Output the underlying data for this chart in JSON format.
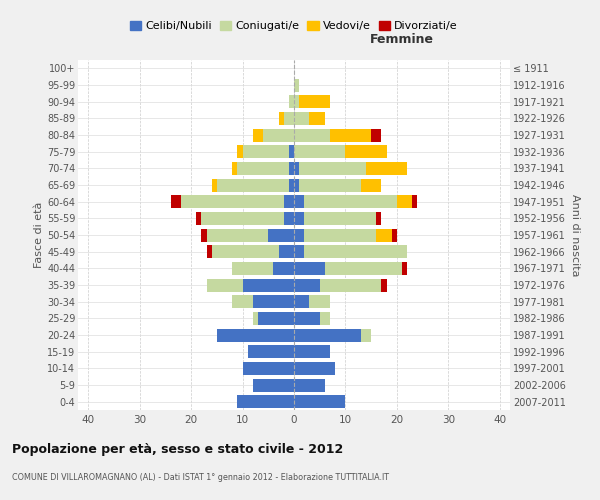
{
  "age_groups": [
    "0-4",
    "5-9",
    "10-14",
    "15-19",
    "20-24",
    "25-29",
    "30-34",
    "35-39",
    "40-44",
    "45-49",
    "50-54",
    "55-59",
    "60-64",
    "65-69",
    "70-74",
    "75-79",
    "80-84",
    "85-89",
    "90-94",
    "95-99",
    "100+"
  ],
  "birth_years": [
    "2007-2011",
    "2002-2006",
    "1997-2001",
    "1992-1996",
    "1987-1991",
    "1982-1986",
    "1977-1981",
    "1972-1976",
    "1967-1971",
    "1962-1966",
    "1957-1961",
    "1952-1956",
    "1947-1951",
    "1942-1946",
    "1937-1941",
    "1932-1936",
    "1927-1931",
    "1922-1926",
    "1917-1921",
    "1912-1916",
    "≤ 1911"
  ],
  "male": {
    "celibi": [
      11,
      8,
      10,
      9,
      15,
      7,
      8,
      10,
      4,
      3,
      5,
      2,
      2,
      1,
      1,
      1,
      0,
      0,
      0,
      0,
      0
    ],
    "coniugati": [
      0,
      0,
      0,
      0,
      0,
      1,
      4,
      7,
      8,
      13,
      12,
      16,
      20,
      14,
      10,
      9,
      6,
      2,
      1,
      0,
      0
    ],
    "vedovi": [
      0,
      0,
      0,
      0,
      0,
      0,
      0,
      0,
      0,
      0,
      0,
      0,
      0,
      1,
      1,
      1,
      2,
      1,
      0,
      0,
      0
    ],
    "divorziati": [
      0,
      0,
      0,
      0,
      0,
      0,
      0,
      0,
      0,
      1,
      1,
      1,
      2,
      0,
      0,
      0,
      0,
      0,
      0,
      0,
      0
    ]
  },
  "female": {
    "nubili": [
      10,
      6,
      8,
      7,
      13,
      5,
      3,
      5,
      6,
      2,
      2,
      2,
      2,
      1,
      1,
      0,
      0,
      0,
      0,
      0,
      0
    ],
    "coniugate": [
      0,
      0,
      0,
      0,
      2,
      2,
      4,
      12,
      15,
      20,
      14,
      14,
      18,
      12,
      13,
      10,
      7,
      3,
      1,
      1,
      0
    ],
    "vedove": [
      0,
      0,
      0,
      0,
      0,
      0,
      0,
      0,
      0,
      0,
      3,
      0,
      3,
      4,
      8,
      8,
      8,
      3,
      6,
      0,
      0
    ],
    "divorziate": [
      0,
      0,
      0,
      0,
      0,
      0,
      0,
      1,
      1,
      0,
      1,
      1,
      1,
      0,
      0,
      0,
      2,
      0,
      0,
      0,
      0
    ]
  },
  "color_celibi": "#4472c4",
  "color_coniugati": "#c5d9a0",
  "color_vedovi": "#ffc000",
  "color_divorziati": "#c00000",
  "xlim": 42,
  "title1": "Popolazione per età, sesso e stato civile - 2012",
  "title2": "COMUNE DI VILLAROMAGNANO (AL) - Dati ISTAT 1° gennaio 2012 - Elaborazione TUTTITALIA.IT",
  "ylabel_left": "Fasce di età",
  "ylabel_right": "Anni di nascita",
  "xlabel_femmine": "Femmine",
  "bg_color": "#f0f0f0",
  "plot_bg": "#ffffff"
}
